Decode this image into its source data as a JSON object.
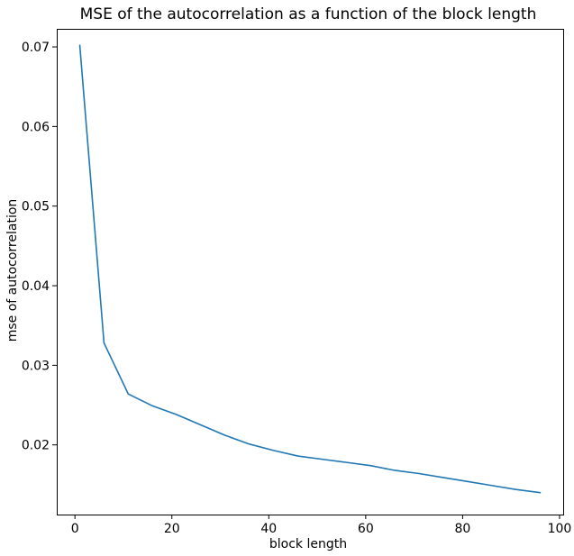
{
  "chart_data": {
    "type": "line",
    "title": "MSE of the autocorrelation as a function of the block length",
    "xlabel": "block length",
    "ylabel": "mse of autocorrelation",
    "xlim": [
      -3.75,
      100.75
    ],
    "ylim": [
      0.01125,
      0.07227
    ],
    "xticks": [
      0,
      20,
      40,
      60,
      80,
      100
    ],
    "xtick_labels": [
      "0",
      "20",
      "40",
      "60",
      "80",
      "100"
    ],
    "yticks": [
      0.02,
      0.03,
      0.04,
      0.05,
      0.06,
      0.07
    ],
    "ytick_labels": [
      "0.02",
      "0.03",
      "0.04",
      "0.05",
      "0.06",
      "0.07"
    ],
    "grid": false,
    "legend": false,
    "series": [
      {
        "color": "#1f77b4",
        "x": [
          1,
          6,
          11,
          16,
          21,
          26,
          31,
          36,
          41,
          46,
          51,
          56,
          61,
          66,
          71,
          76,
          81,
          86,
          91,
          96
        ],
        "y": [
          0.0702,
          0.0328,
          0.0264,
          0.0249,
          0.0238,
          0.0225,
          0.0212,
          0.0201,
          0.0193,
          0.0186,
          0.0182,
          0.0178,
          0.0174,
          0.0168,
          0.0164,
          0.0159,
          0.0154,
          0.0149,
          0.0144,
          0.014
        ]
      }
    ]
  }
}
